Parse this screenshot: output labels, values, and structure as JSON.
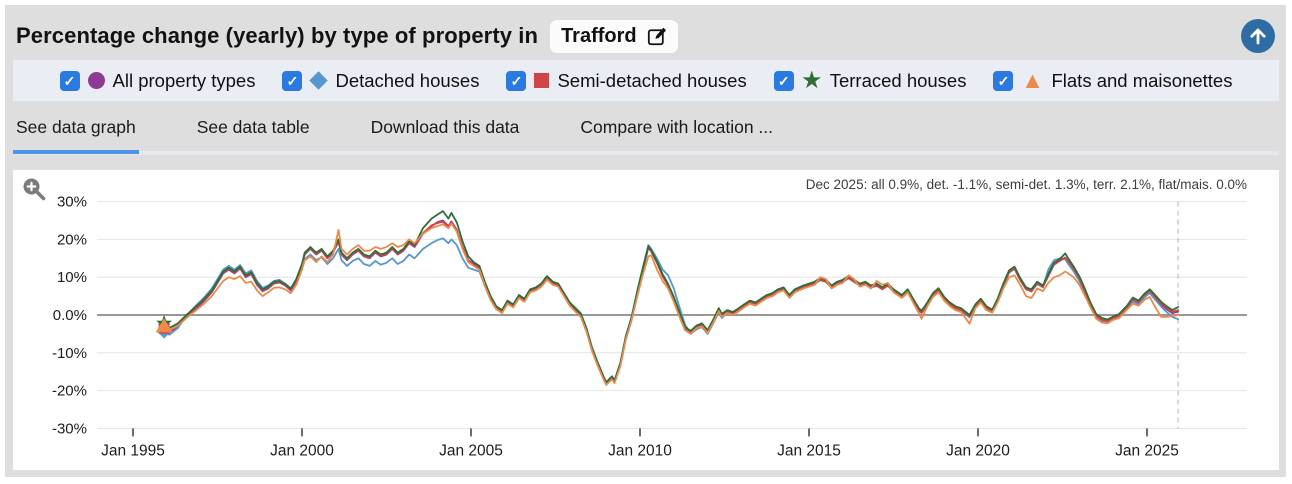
{
  "header": {
    "title": "Percentage change (yearly) by type of property in",
    "location": "Trafford",
    "scroll_top_color": "#2e6da4"
  },
  "icons": {
    "check": "✓",
    "star": "★",
    "triangle": "▲"
  },
  "legend": {
    "checkbox_color": "#2a7ae2",
    "items": [
      {
        "label": "All property types",
        "marker": "circle",
        "color": "#8e3a94",
        "checked": true
      },
      {
        "label": "Detached houses",
        "marker": "diamond",
        "color": "#5597cf",
        "checked": true
      },
      {
        "label": "Semi-detached houses",
        "marker": "square",
        "color": "#cf4448",
        "checked": true
      },
      {
        "label": "Terraced houses",
        "marker": "star",
        "color": "#2f6e38",
        "checked": true
      },
      {
        "label": "Flats and maisonettes",
        "marker": "triangle",
        "color": "#ec8a4c",
        "checked": true
      }
    ]
  },
  "tabs": {
    "active_color": "#4f93e9",
    "items": [
      {
        "label": "See data graph",
        "active": true
      },
      {
        "label": "See data table",
        "active": false
      },
      {
        "label": "Download this data",
        "active": false
      },
      {
        "label": "Compare with location ...",
        "active": false
      }
    ]
  },
  "chart": {
    "annotation": "Dec 2025: all 0.9%, det. -1.1%, semi-det. 1.3%, terr. 2.1%, flat/mais. 0.0%"
  },
  "chart_data": {
    "type": "line",
    "title": "Percentage change (yearly) by type of property in Trafford",
    "xlabel": "",
    "ylabel": "",
    "x_unit": "years since Jan 1995 (t=0 is Jan 1995)",
    "ylim": [
      -30,
      30
    ],
    "grid": true,
    "legend_position": "top",
    "dashed_marker_t": 30.92,
    "y_ticks": {
      "labels": [
        "30%",
        "20%",
        "10%",
        "0.0%",
        "-10%",
        "-20%",
        "-30%"
      ],
      "values": [
        30,
        20,
        10,
        0,
        -10,
        -20,
        -30
      ]
    },
    "x_ticks": {
      "labels": [
        "Jan 1995",
        "Jan 2000",
        "Jan 2005",
        "Jan 2010",
        "Jan 2015",
        "Jan 2020",
        "Jan 2025"
      ],
      "values": [
        0,
        5,
        10,
        15,
        20,
        25,
        30
      ]
    },
    "x": [
      0.92,
      1.08,
      1.33,
      1.58,
      1.83,
      2.08,
      2.33,
      2.5,
      2.67,
      2.83,
      3,
      3.17,
      3.33,
      3.5,
      3.67,
      3.83,
      4,
      4.17,
      4.33,
      4.5,
      4.67,
      4.83,
      5,
      5.08,
      5.25,
      5.42,
      5.58,
      5.75,
      5.92,
      6.08,
      6.17,
      6.33,
      6.5,
      6.67,
      6.83,
      7,
      7.17,
      7.33,
      7.5,
      7.67,
      7.83,
      8,
      8.17,
      8.33,
      8.58,
      8.83,
      9,
      9.17,
      9.33,
      9.42,
      9.58,
      9.75,
      9.92,
      10.08,
      10.25,
      10.42,
      10.58,
      10.75,
      10.92,
      11.08,
      11.25,
      11.42,
      11.58,
      11.75,
      11.92,
      12.08,
      12.25,
      12.42,
      12.58,
      12.75,
      12.92,
      13.08,
      13.25,
      13.42,
      13.58,
      13.75,
      13.92,
      14,
      14.17,
      14.25,
      14.42,
      14.58,
      14.75,
      14.92,
      15.08,
      15.25,
      15.33,
      15.5,
      15.67,
      15.83,
      16,
      16.17,
      16.33,
      16.5,
      16.67,
      16.83,
      17,
      17.17,
      17.33,
      17.42,
      17.58,
      17.75,
      17.92,
      18.08,
      18.25,
      18.42,
      18.58,
      18.75,
      18.92,
      19.08,
      19.25,
      19.42,
      19.58,
      19.83,
      20,
      20.17,
      20.33,
      20.5,
      20.67,
      20.83,
      21,
      21.17,
      21.33,
      21.5,
      21.67,
      21.83,
      22,
      22.17,
      22.33,
      22.5,
      22.75,
      22.92,
      23.08,
      23.25,
      23.33,
      23.5,
      23.67,
      23.83,
      24,
      24.17,
      24.33,
      24.5,
      24.75,
      24.92,
      25.08,
      25.25,
      25.42,
      25.58,
      25.75,
      25.92,
      26.08,
      26.25,
      26.42,
      26.58,
      26.75,
      26.92,
      27.08,
      27.25,
      27.42,
      27.58,
      27.67,
      27.83,
      28,
      28.17,
      28.33,
      28.5,
      28.67,
      28.83,
      29,
      29.17,
      29.42,
      29.58,
      29.75,
      29.92,
      30.08,
      30.25,
      30.42,
      30.58,
      30.75,
      30.92
    ],
    "series": [
      {
        "name": "All property types",
        "color": "#8e3a94",
        "marker": "circle",
        "values": [
          -3.8,
          -4.6,
          -3,
          -0.5,
          1.5,
          3.5,
          6,
          8.5,
          11,
          12,
          11,
          12.3,
          10,
          10.8,
          8,
          6.3,
          7,
          8.3,
          8.6,
          7.8,
          6.5,
          9,
          13,
          16,
          17.5,
          16,
          17,
          15,
          16.5,
          19.5,
          16,
          14.5,
          16,
          17,
          15.5,
          15,
          16.5,
          15.5,
          16,
          17.5,
          16,
          17,
          19,
          18,
          21.5,
          23.5,
          24.5,
          25,
          23.5,
          24.8,
          22.5,
          18,
          14.5,
          13.5,
          12.5,
          8,
          4.5,
          2,
          1,
          3.5,
          2.5,
          5,
          4,
          6.5,
          7,
          8,
          10,
          8.5,
          8,
          5.5,
          3,
          1.5,
          0,
          -4,
          -9,
          -13,
          -16.5,
          -18,
          -16.5,
          -17.5,
          -13,
          -6,
          -1,
          6,
          12,
          18,
          17,
          14,
          10.5,
          8,
          4.5,
          0.5,
          -3.5,
          -4.5,
          -3,
          -2.5,
          -4.3,
          -1.5,
          1.5,
          0,
          1,
          0.5,
          1.5,
          2.5,
          3.5,
          3,
          4,
          5,
          5.5,
          6.5,
          7,
          5,
          6.5,
          7.5,
          8,
          8.5,
          9.5,
          9,
          7.5,
          8.5,
          9,
          10,
          9,
          8,
          8.5,
          7.5,
          8,
          7,
          8,
          6.5,
          5,
          6.5,
          4,
          1.5,
          0.8,
          3,
          5.5,
          6.8,
          4.5,
          3,
          2,
          1.5,
          -0.3,
          2.5,
          4,
          2,
          1.2,
          4,
          8,
          11.5,
          12.5,
          9.5,
          7,
          6.5,
          8.5,
          7.5,
          10.5,
          13.5,
          14.5,
          15,
          14,
          12,
          9.5,
          6,
          2.5,
          -0.5,
          -1.5,
          -1.8,
          -1,
          -0.5,
          2,
          4,
          3.2,
          5,
          6.2,
          4.5,
          2.8,
          1.5,
          0.5,
          0.9
        ]
      },
      {
        "name": "Detached houses",
        "color": "#5597cf",
        "marker": "diamond",
        "values": [
          -4.5,
          -5.2,
          -3.4,
          -0.2,
          2.2,
          4.4,
          7,
          9.5,
          12,
          13,
          12,
          13.2,
          11,
          11.8,
          9,
          7.2,
          7.8,
          9,
          9.3,
          8.3,
          7,
          9.3,
          12.5,
          14.8,
          16,
          14.5,
          15.3,
          13.5,
          15,
          17.5,
          14.5,
          13,
          14.3,
          15,
          13.5,
          13,
          14.3,
          13.3,
          13.8,
          15,
          13.5,
          14.3,
          16,
          15,
          17.5,
          19,
          19.8,
          20.3,
          19,
          20,
          18.5,
          15,
          12.5,
          12,
          11.5,
          7.5,
          4,
          1.5,
          0.8,
          3.2,
          2.2,
          4.7,
          3.8,
          6.2,
          6.8,
          7.8,
          9.7,
          8.3,
          7.8,
          5.8,
          3.3,
          2,
          0.5,
          -3.5,
          -8.5,
          -12.5,
          -16.2,
          -17.8,
          -16.2,
          -17.2,
          -12.5,
          -5.5,
          -0.5,
          6.5,
          12.5,
          18.5,
          17.5,
          15,
          12,
          10.5,
          7,
          2,
          -2.5,
          -5,
          -3.8,
          -3.2,
          -5,
          -2.2,
          0.8,
          -0.8,
          0.5,
          0,
          1,
          2,
          3.2,
          2.6,
          3.6,
          4.6,
          5.2,
          6.2,
          6.8,
          4.6,
          6.2,
          7.2,
          7.8,
          8.2,
          9.2,
          8.8,
          7.2,
          8.2,
          8.8,
          9.7,
          8.8,
          7.8,
          8.3,
          7.2,
          7.8,
          6.8,
          7.8,
          6.2,
          4.8,
          6.2,
          3.8,
          1.2,
          0.5,
          2.8,
          5.2,
          6.5,
          4.2,
          2.8,
          1.8,
          1.2,
          -0.6,
          2.2,
          3.8,
          1.8,
          1,
          3.8,
          7.8,
          11.2,
          12.2,
          9.2,
          6.8,
          6.2,
          8.2,
          7.3,
          12,
          14.5,
          15,
          14.8,
          13.5,
          11.5,
          9,
          5.5,
          2,
          -0.8,
          -1.8,
          -2,
          -1.2,
          -0.8,
          1.6,
          3.6,
          2.8,
          4.6,
          5.8,
          4,
          2.2,
          0.8,
          -0.5,
          -1.1
        ]
      },
      {
        "name": "Semi-detached houses",
        "color": "#cf4448",
        "marker": "square",
        "values": [
          -3.5,
          -4.3,
          -2.7,
          -0.3,
          1.8,
          3.8,
          6.3,
          8.8,
          11.2,
          12.2,
          11.3,
          12.5,
          10.3,
          11,
          8.3,
          6.6,
          7.3,
          8.5,
          8.8,
          8,
          6.8,
          9.2,
          13.2,
          16.2,
          17.7,
          16.2,
          17.2,
          15.2,
          16.7,
          19.8,
          16.2,
          14.7,
          16.2,
          17.2,
          15.7,
          15.2,
          16.7,
          15.7,
          16.2,
          17.7,
          16.2,
          17.2,
          19.2,
          18.2,
          21.7,
          23.7,
          24.3,
          24.7,
          23.2,
          24.5,
          22.2,
          17.7,
          14.2,
          13.2,
          12.2,
          7.8,
          4.3,
          1.8,
          0.8,
          3.3,
          2.3,
          4.8,
          3.8,
          6.3,
          6.8,
          7.8,
          9.8,
          8.3,
          7.8,
          5.3,
          2.8,
          1.3,
          -0.2,
          -4.2,
          -9.2,
          -13.2,
          -16.7,
          -18.2,
          -16.7,
          -17.7,
          -13.2,
          -6.2,
          -1.2,
          5.8,
          11.8,
          17.8,
          16.8,
          13.8,
          10.2,
          7.8,
          4.2,
          0.2,
          -3.8,
          -4.8,
          -3.2,
          -2.8,
          -4.5,
          -1.8,
          1.2,
          -0.3,
          0.8,
          0.3,
          1.3,
          2.3,
          3.3,
          2.8,
          3.8,
          4.8,
          5.3,
          6.3,
          6.8,
          4.8,
          6.3,
          7.3,
          7.8,
          8.3,
          9.3,
          8.8,
          7.3,
          8.3,
          8.8,
          9.8,
          8.8,
          7.8,
          8.3,
          7.3,
          7.8,
          6.8,
          7.8,
          6.3,
          4.8,
          6.3,
          3.8,
          1.3,
          0.6,
          2.8,
          5.3,
          6.6,
          4.3,
          2.8,
          1.8,
          1.3,
          -0.4,
          2.3,
          3.8,
          1.8,
          1.1,
          3.8,
          7.8,
          11.3,
          12.3,
          9.3,
          6.8,
          6.3,
          8.3,
          7.4,
          10.3,
          13.3,
          14.3,
          15.2,
          14.2,
          12.2,
          9.7,
          6.2,
          2.7,
          -0.3,
          -1.3,
          -1.6,
          -0.8,
          -0.3,
          2.2,
          4.2,
          3.4,
          5.2,
          6.4,
          4.7,
          3,
          1.8,
          0.8,
          1.3
        ]
      },
      {
        "name": "Terraced houses",
        "color": "#2f6e38",
        "marker": "star",
        "values": [
          -2.2,
          -3.4,
          -2.2,
          0,
          2,
          4,
          6.5,
          9,
          11.5,
          12.5,
          11.5,
          12.8,
          10.5,
          11.3,
          8.5,
          6.8,
          7.5,
          8.8,
          9,
          8.2,
          7,
          9.5,
          13.5,
          16.5,
          18,
          16.5,
          17.5,
          15.5,
          17,
          20,
          16.5,
          15,
          16.5,
          17.5,
          16,
          15.5,
          17,
          16,
          16.5,
          18,
          16.5,
          17.5,
          19.5,
          18.5,
          23,
          25.5,
          26.5,
          27.5,
          25.5,
          27,
          24.5,
          19.5,
          15.5,
          14,
          13,
          8.5,
          5,
          2.3,
          1.3,
          3.8,
          2.8,
          5.3,
          4.3,
          6.8,
          7.3,
          8.3,
          10.3,
          8.8,
          8.3,
          5.8,
          3.3,
          1.8,
          0.3,
          -3.8,
          -8.8,
          -12.8,
          -16.3,
          -17.8,
          -16.3,
          -17.3,
          -12.8,
          -5.8,
          -0.8,
          6.2,
          12.2,
          18.2,
          17.2,
          14.2,
          10.8,
          8.2,
          4.8,
          0.8,
          -3.2,
          -4.2,
          -2.8,
          -2.2,
          -4,
          -1.2,
          1.8,
          0.3,
          1.3,
          0.8,
          1.8,
          2.8,
          3.8,
          3.3,
          4.3,
          5.3,
          5.8,
          6.8,
          7.3,
          5.3,
          6.8,
          7.8,
          8.3,
          8.8,
          9.8,
          9.3,
          7.8,
          8.8,
          9.3,
          10.3,
          9.3,
          8.3,
          8.8,
          7.8,
          8.3,
          7.3,
          8.3,
          6.8,
          5.3,
          6.8,
          4.3,
          1.8,
          1.1,
          3.3,
          5.8,
          7.1,
          4.8,
          3.3,
          2.3,
          1.8,
          0,
          2.8,
          4.3,
          2.3,
          1.4,
          4.3,
          8.3,
          11.8,
          12.8,
          9.8,
          7.3,
          6.8,
          8.8,
          7.8,
          10.8,
          13.8,
          14.8,
          16.3,
          15,
          12.8,
          10.2,
          6.8,
          3.2,
          0.2,
          -0.8,
          -1.2,
          -0.4,
          0.2,
          2.6,
          4.6,
          3.8,
          5.6,
          6.8,
          5.2,
          3.5,
          2.3,
          1.3,
          2.1
        ]
      },
      {
        "name": "Flats and maisonettes",
        "color": "#ec8a4c",
        "marker": "triangle",
        "values": [
          -3,
          -4,
          -2.8,
          -0.8,
          1,
          2.8,
          5,
          7,
          9,
          10,
          9.5,
          10.3,
          8.5,
          8.8,
          6.5,
          5,
          6,
          7.2,
          7.3,
          6.8,
          5.8,
          8,
          12,
          14.5,
          15.5,
          14,
          15.5,
          14,
          16,
          22.5,
          17.5,
          16,
          17.5,
          18.5,
          17,
          17,
          18,
          17.5,
          18,
          19,
          18,
          18.5,
          20,
          19,
          21.5,
          23,
          23.5,
          24,
          23,
          24.2,
          22,
          17.5,
          14,
          13,
          12,
          7.5,
          4,
          1.5,
          0.5,
          3,
          2,
          4.5,
          3.5,
          6,
          6.5,
          7.5,
          9.3,
          8,
          7.5,
          5,
          2.5,
          1,
          -0.5,
          -4.5,
          -9.5,
          -13.5,
          -17,
          -18.5,
          -17,
          -18,
          -13.5,
          -6.5,
          -1.5,
          5,
          10.5,
          15.5,
          15.8,
          12,
          9,
          7,
          3.5,
          -0.5,
          -4,
          -5,
          -3.5,
          -3,
          -4.8,
          -2,
          1,
          -0.5,
          0.5,
          0,
          1,
          2,
          3,
          2.5,
          3.5,
          4.5,
          5,
          6,
          6.5,
          4.5,
          6,
          7,
          7.5,
          8,
          10,
          9.5,
          7,
          8,
          8.5,
          10.5,
          9.5,
          7.5,
          8,
          7,
          9,
          8,
          8.5,
          6,
          4.5,
          6,
          3.3,
          0.5,
          -1,
          2.3,
          4.8,
          6,
          3.8,
          2.3,
          1.3,
          0.8,
          -2.3,
          1.8,
          3.3,
          1.3,
          0.6,
          3.3,
          7,
          10,
          10.5,
          8,
          5,
          4.5,
          7,
          6.3,
          8.5,
          10,
          10.5,
          11.5,
          11,
          10,
          8,
          5,
          2,
          -1,
          -2,
          -2.2,
          -1.3,
          -0.8,
          1.5,
          3,
          2.5,
          4,
          4.8,
          2,
          -0.5,
          -0.5,
          -0.3,
          0
        ]
      }
    ]
  }
}
